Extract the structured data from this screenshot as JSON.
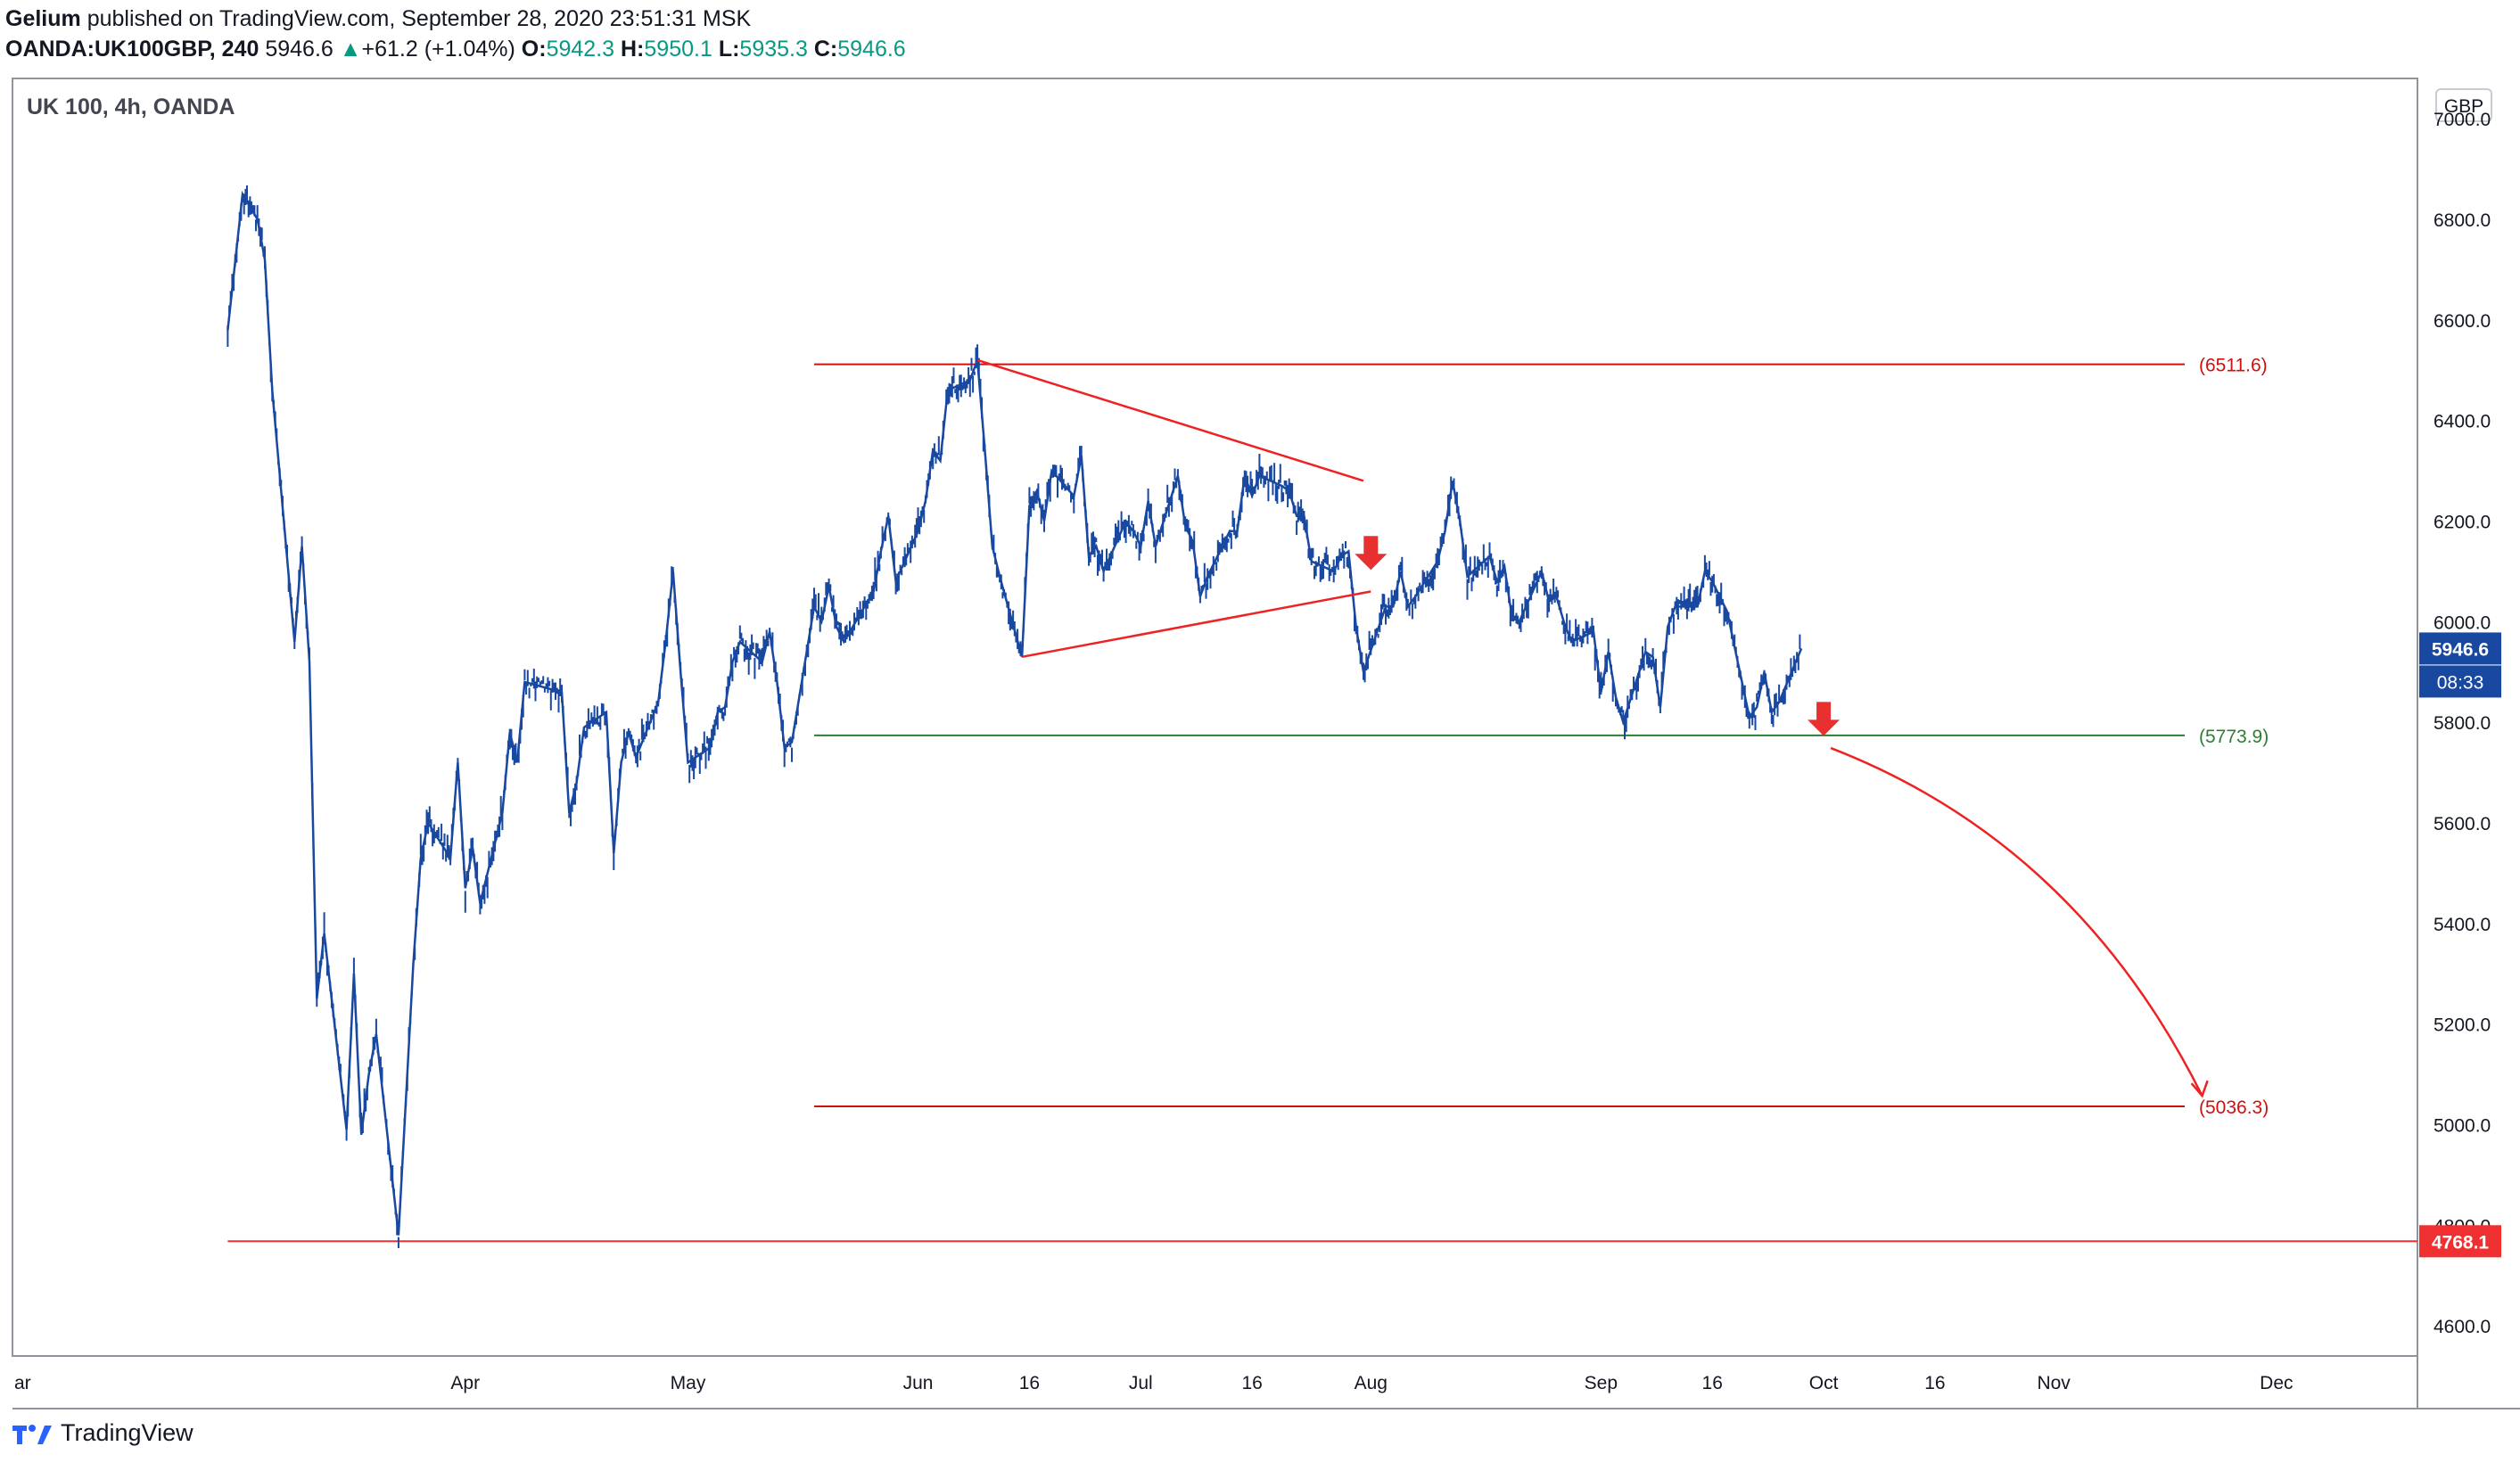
{
  "header": {
    "author": "Gelium",
    "published": "published on TradingView.com, September 28, 2020 23:51:31 MSK",
    "symbol": "OANDA:UK100GBP, 240",
    "last": "5946.6",
    "change_arrow": "▲",
    "change": "+61.2 (+1.04%)",
    "o_label": "O:",
    "o": "5942.3",
    "h_label": "H:",
    "h": "5950.1",
    "l_label": "L:",
    "l": "5935.3",
    "c_label": "C:",
    "c": "5946.6"
  },
  "chart_title": "UK 100, 4h, OANDA",
  "currency_button": "GBP",
  "footer": {
    "brand": "TradingView",
    "logo_icon": "tradingview-logo-icon"
  },
  "chart_data": {
    "type": "line",
    "title": "UK 100, 4h, OANDA",
    "xlabel": "",
    "ylabel": "",
    "ylim": [
      4540,
      7080
    ],
    "y_ticks": [
      4600,
      4800,
      5000,
      5200,
      5400,
      5600,
      5800,
      6000,
      6200,
      6400,
      6600,
      6800,
      7000
    ],
    "x_ticks": [
      {
        "date": "2020-03-01",
        "label": "ar"
      },
      {
        "date": "2020-04-01",
        "label": "Apr"
      },
      {
        "date": "2020-05-01",
        "label": "May"
      },
      {
        "date": "2020-06-01",
        "label": "Jun"
      },
      {
        "date": "2020-06-16",
        "label": "16"
      },
      {
        "date": "2020-07-01",
        "label": "Jul"
      },
      {
        "date": "2020-07-16",
        "label": "16"
      },
      {
        "date": "2020-08-01",
        "label": "Aug"
      },
      {
        "date": "2020-09-01",
        "label": "Sep"
      },
      {
        "date": "2020-09-16",
        "label": "16"
      },
      {
        "date": "2020-10-01",
        "label": "Oct"
      },
      {
        "date": "2020-10-16",
        "label": "16"
      },
      {
        "date": "2020-11-01",
        "label": "Nov"
      },
      {
        "date": "2020-12-01",
        "label": "Dec"
      }
    ],
    "grid": false,
    "series": [
      {
        "color": "#1848a0",
        "points": [
          [
            "2020-02-29",
            6580
          ],
          [
            "2020-03-02",
            6850
          ],
          [
            "2020-03-04",
            6800
          ],
          [
            "2020-03-05",
            6720
          ],
          [
            "2020-03-06",
            6460
          ],
          [
            "2020-03-09",
            5960
          ],
          [
            "2020-03-10",
            6150
          ],
          [
            "2020-03-11",
            5920
          ],
          [
            "2020-03-12",
            5250
          ],
          [
            "2020-03-13",
            5380
          ],
          [
            "2020-03-16",
            4990
          ],
          [
            "2020-03-17",
            5300
          ],
          [
            "2020-03-18",
            4980
          ],
          [
            "2020-03-19",
            5100
          ],
          [
            "2020-03-20",
            5180
          ],
          [
            "2020-03-23",
            4780
          ],
          [
            "2020-03-24",
            5050
          ],
          [
            "2020-03-25",
            5320
          ],
          [
            "2020-03-26",
            5530
          ],
          [
            "2020-03-27",
            5600
          ],
          [
            "2020-03-30",
            5530
          ],
          [
            "2020-03-31",
            5720
          ],
          [
            "2020-04-01",
            5470
          ],
          [
            "2020-04-02",
            5550
          ],
          [
            "2020-04-03",
            5440
          ],
          [
            "2020-04-06",
            5620
          ],
          [
            "2020-04-07",
            5780
          ],
          [
            "2020-04-08",
            5720
          ],
          [
            "2020-04-09",
            5880
          ],
          [
            "2020-04-14",
            5860
          ],
          [
            "2020-04-15",
            5620
          ],
          [
            "2020-04-16",
            5680
          ],
          [
            "2020-04-17",
            5790
          ],
          [
            "2020-04-20",
            5820
          ],
          [
            "2020-04-21",
            5540
          ],
          [
            "2020-04-22",
            5720
          ],
          [
            "2020-04-23",
            5780
          ],
          [
            "2020-04-24",
            5730
          ],
          [
            "2020-04-27",
            5840
          ],
          [
            "2020-04-28",
            5960
          ],
          [
            "2020-04-29",
            6100
          ],
          [
            "2020-04-30",
            5900
          ],
          [
            "2020-05-01",
            5720
          ],
          [
            "2020-05-04",
            5750
          ],
          [
            "2020-05-05",
            5820
          ],
          [
            "2020-05-06",
            5830
          ],
          [
            "2020-05-07",
            5920
          ],
          [
            "2020-05-08",
            5960
          ],
          [
            "2020-05-11",
            5920
          ],
          [
            "2020-05-12",
            5980
          ],
          [
            "2020-05-13",
            5880
          ],
          [
            "2020-05-14",
            5750
          ],
          [
            "2020-05-15",
            5760
          ],
          [
            "2020-05-18",
            6030
          ],
          [
            "2020-05-19",
            6000
          ],
          [
            "2020-05-20",
            6070
          ],
          [
            "2020-05-21",
            5990
          ],
          [
            "2020-05-22",
            5960
          ],
          [
            "2020-05-26",
            6060
          ],
          [
            "2020-05-27",
            6140
          ],
          [
            "2020-05-28",
            6210
          ],
          [
            "2020-05-29",
            6080
          ],
          [
            "2020-06-01",
            6180
          ],
          [
            "2020-06-02",
            6240
          ],
          [
            "2020-06-03",
            6340
          ],
          [
            "2020-06-04",
            6320
          ],
          [
            "2020-06-05",
            6460
          ],
          [
            "2020-06-08",
            6480
          ],
          [
            "2020-06-09",
            6520
          ],
          [
            "2020-06-10",
            6340
          ],
          [
            "2020-06-11",
            6150
          ],
          [
            "2020-06-12",
            6090
          ],
          [
            "2020-06-15",
            5930
          ],
          [
            "2020-06-16",
            6230
          ],
          [
            "2020-06-17",
            6260
          ],
          [
            "2020-06-18",
            6200
          ],
          [
            "2020-06-19",
            6300
          ],
          [
            "2020-06-22",
            6250
          ],
          [
            "2020-06-23",
            6330
          ],
          [
            "2020-06-24",
            6130
          ],
          [
            "2020-06-25",
            6150
          ],
          [
            "2020-06-26",
            6100
          ],
          [
            "2020-06-29",
            6200
          ],
          [
            "2020-06-30",
            6180
          ],
          [
            "2020-07-01",
            6150
          ],
          [
            "2020-07-02",
            6240
          ],
          [
            "2020-07-03",
            6150
          ],
          [
            "2020-07-06",
            6290
          ],
          [
            "2020-07-07",
            6190
          ],
          [
            "2020-07-08",
            6160
          ],
          [
            "2020-07-09",
            6050
          ],
          [
            "2020-07-10",
            6090
          ],
          [
            "2020-07-13",
            6180
          ],
          [
            "2020-07-14",
            6180
          ],
          [
            "2020-07-15",
            6290
          ],
          [
            "2020-07-16",
            6250
          ],
          [
            "2020-07-17",
            6290
          ],
          [
            "2020-07-20",
            6270
          ],
          [
            "2020-07-21",
            6260
          ],
          [
            "2020-07-22",
            6210
          ],
          [
            "2020-07-23",
            6210
          ],
          [
            "2020-07-24",
            6120
          ],
          [
            "2020-07-27",
            6100
          ],
          [
            "2020-07-28",
            6130
          ],
          [
            "2020-07-29",
            6140
          ],
          [
            "2020-07-30",
            5990
          ],
          [
            "2020-07-31",
            5900
          ],
          [
            "2020-08-03",
            6030
          ],
          [
            "2020-08-04",
            6030
          ],
          [
            "2020-08-05",
            6100
          ],
          [
            "2020-08-06",
            6030
          ],
          [
            "2020-08-07",
            6050
          ],
          [
            "2020-08-10",
            6120
          ],
          [
            "2020-08-11",
            6180
          ],
          [
            "2020-08-12",
            6280
          ],
          [
            "2020-08-13",
            6200
          ],
          [
            "2020-08-14",
            6090
          ],
          [
            "2020-08-17",
            6130
          ],
          [
            "2020-08-18",
            6080
          ],
          [
            "2020-08-19",
            6110
          ],
          [
            "2020-08-20",
            6010
          ],
          [
            "2020-08-21",
            6000
          ],
          [
            "2020-08-24",
            6100
          ],
          [
            "2020-08-25",
            6040
          ],
          [
            "2020-08-26",
            6050
          ],
          [
            "2020-08-27",
            6000
          ],
          [
            "2020-08-28",
            5960
          ],
          [
            "2020-08-31",
            5980
          ],
          [
            "2020-09-01",
            5860
          ],
          [
            "2020-09-02",
            5940
          ],
          [
            "2020-09-03",
            5850
          ],
          [
            "2020-09-04",
            5800
          ],
          [
            "2020-09-07",
            5940
          ],
          [
            "2020-09-08",
            5930
          ],
          [
            "2020-09-09",
            5830
          ],
          [
            "2020-09-10",
            5990
          ],
          [
            "2020-09-11",
            6030
          ],
          [
            "2020-09-14",
            6030
          ],
          [
            "2020-09-15",
            6100
          ],
          [
            "2020-09-16",
            6080
          ],
          [
            "2020-09-17",
            6050
          ],
          [
            "2020-09-18",
            6020
          ],
          [
            "2020-09-21",
            5810
          ],
          [
            "2020-09-22",
            5830
          ],
          [
            "2020-09-23",
            5900
          ],
          [
            "2020-09-24",
            5820
          ],
          [
            "2020-09-25",
            5840
          ],
          [
            "2020-09-28",
            5946.6
          ]
        ]
      }
    ],
    "levels": [
      {
        "value": 6511.6,
        "label": "(6511.6)",
        "color": "#cc1111",
        "from": "2020-05-18"
      },
      {
        "value": 5773.9,
        "label": "(5773.9)",
        "color": "#2e7d32",
        "from": "2020-05-18"
      },
      {
        "value": 5036.3,
        "label": "(5036.3)",
        "color": "#cc1111",
        "from": "2020-05-18"
      },
      {
        "value": 4768.1,
        "label": "4768.1",
        "color": "#f03030",
        "from": "2020-02-29",
        "axis_badge": true
      }
    ],
    "last_price": {
      "label": "5946.6",
      "countdown": "08:33",
      "value": 5946.6,
      "color": "#1848a0"
    },
    "trendlines": [
      {
        "from": [
          "2020-06-09",
          6520
        ],
        "to": [
          "2020-07-31",
          6280
        ],
        "color": "#ee2222"
      },
      {
        "from": [
          "2020-06-15",
          5930
        ],
        "to": [
          "2020-08-01",
          6060
        ],
        "color": "#ee2222"
      }
    ],
    "arrows": [
      {
        "date": "2020-08-01",
        "value": 6110,
        "direction": "down",
        "color": "#e83030"
      },
      {
        "date": "2020-10-01",
        "value": 5780,
        "direction": "down",
        "color": "#e83030"
      }
    ],
    "projection_curve": {
      "from": [
        "2020-10-01",
        5770
      ],
      "control": [
        "2020-11-04",
        5560
      ],
      "to": [
        "2020-11-21",
        5036
      ],
      "color": "#ee2222"
    }
  }
}
